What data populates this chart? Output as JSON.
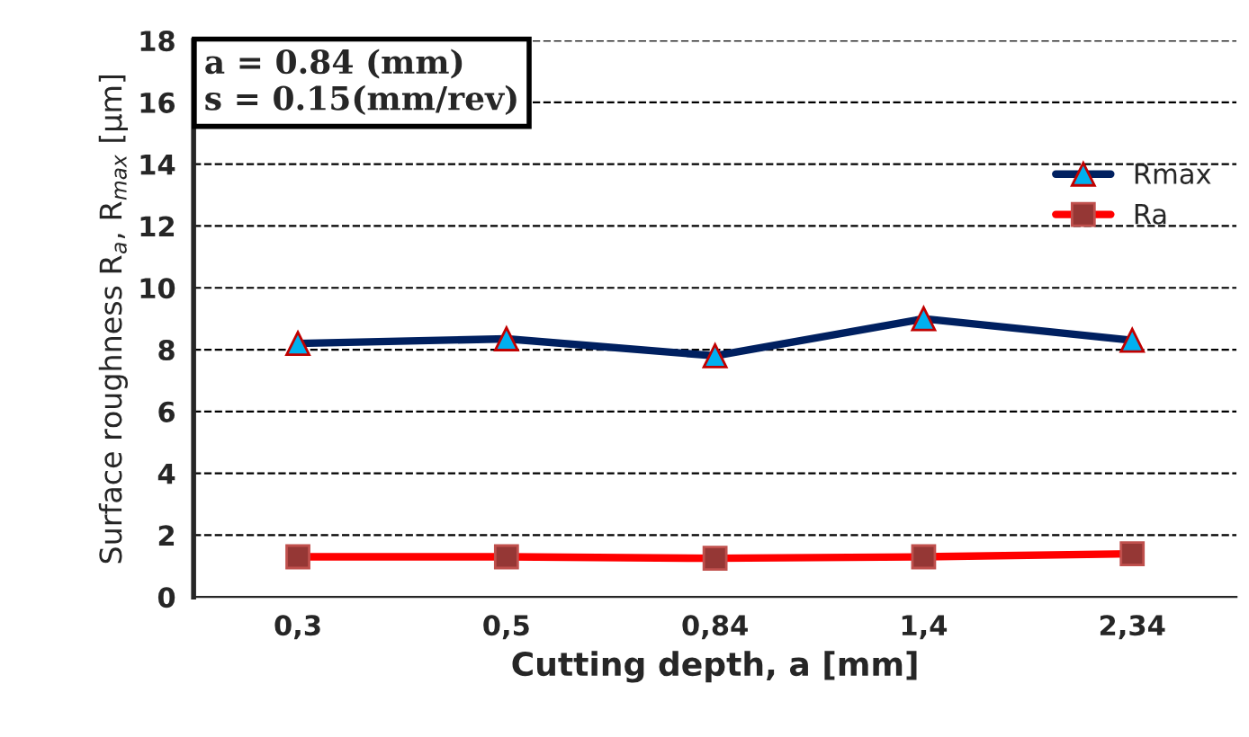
{
  "chart_data": {
    "type": "line",
    "xlabel": "Cutting depth, a [mm]",
    "ylabel": "Surface roughness R$_{a}$, R$_{max}$ [μm]",
    "annotations": [
      "a = 0.84 (mm)\ns = 0.15(mm/rev)"
    ],
    "categories": [
      "0,3",
      "0,5",
      "0,84",
      "1,4",
      "2,34"
    ],
    "series": [
      {
        "name": "Rmax",
        "color": "#002060",
        "values": [
          8.2,
          8.35,
          7.8,
          9.0,
          8.3
        ],
        "marker": "triangle"
      },
      {
        "name": "Ra",
        "color": "#ff0000",
        "values": [
          1.3,
          1.3,
          1.25,
          1.3,
          1.4
        ],
        "marker": "square"
      }
    ],
    "ylim": [
      0,
      18
    ],
    "yticks": [
      0,
      2,
      4,
      6,
      8,
      10,
      12,
      14,
      16,
      18
    ],
    "grid": "y",
    "legend": "right",
    "line_style": "solid"
  }
}
